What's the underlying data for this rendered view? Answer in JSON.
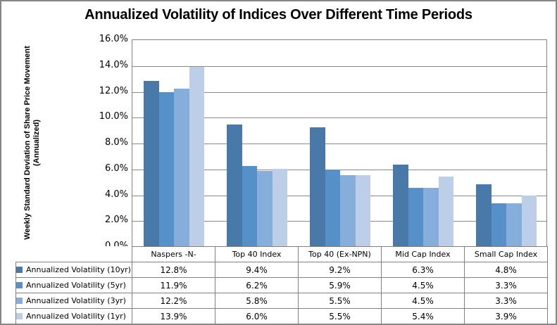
{
  "title": "Annualized Volatility of Indices Over Different Time Periods",
  "y_axis": {
    "line1": "Weekly Standard Deviation of Share Price  Movement",
    "line2": "(Annualized)"
  },
  "chart_data": {
    "type": "bar",
    "title": "Annualized Volatility of Indices Over Different Time Periods",
    "ylabel": "Weekly Standard Deviation of Share Price Movement (Annualized)",
    "xlabel": "",
    "ylim": [
      0,
      16
    ],
    "ytick_step": 2,
    "ytick_suffix": "%",
    "ytick_labels": [
      "0.0%",
      "2.0%",
      "4.0%",
      "6.0%",
      "8.0%",
      "10.0%",
      "12.0%",
      "14.0%",
      "16.0%"
    ],
    "grid": true,
    "legend_position": "data-table-below-chart",
    "categories": [
      "Naspers -N-",
      "Top 40 Index",
      "Top 40 (Ex-NPN)",
      "Mid Cap Index",
      "Small Cap Index"
    ],
    "series": [
      {
        "name": "Annualized Volatility (10yr)",
        "color": "#4879A8",
        "values": [
          12.8,
          9.4,
          9.2,
          6.3,
          4.8
        ]
      },
      {
        "name": "Annualized Volatility (5yr)",
        "color": "#5591C8",
        "values": [
          11.9,
          6.2,
          5.9,
          4.5,
          3.3
        ]
      },
      {
        "name": "Annualized Volatility (3yr)",
        "color": "#86AEDB",
        "values": [
          12.2,
          5.8,
          5.5,
          4.5,
          3.3
        ]
      },
      {
        "name": "Annualized Volatility (1yr)",
        "color": "#BCCEE8",
        "values": [
          13.9,
          6.0,
          5.5,
          5.4,
          3.9
        ]
      }
    ],
    "value_decimals": 1,
    "value_suffix": "%"
  },
  "colors": {
    "chart_border": "#868686",
    "plot_border": "#808080",
    "gridline": "#8A8A8A",
    "table_border": "#808080",
    "background": "#FFFFFF",
    "text": "#000000"
  }
}
